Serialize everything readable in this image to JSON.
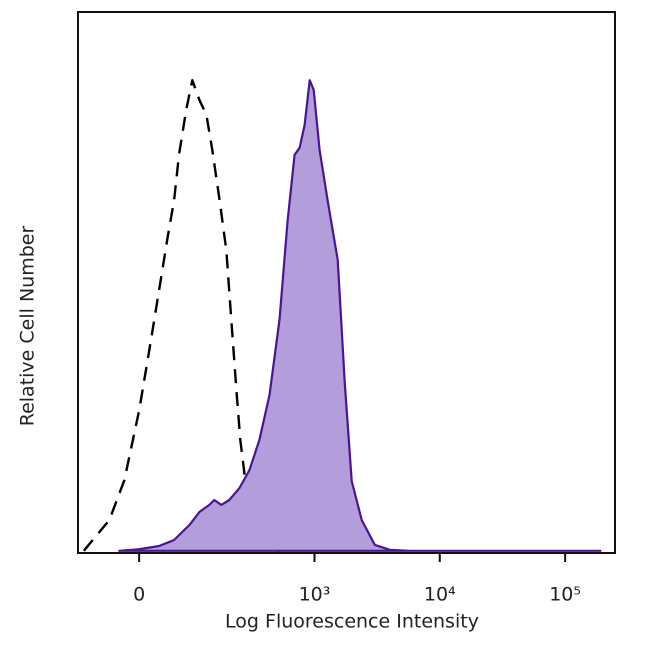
{
  "chart_data": {
    "type": "histogram-overlay",
    "xlabel": "Log Fluorescence Intensity",
    "ylabel": "Relative Cell Number",
    "xscale": "biexponential",
    "xlim": [
      -110,
      250000
    ],
    "xticks": [
      0,
      {
        "value": 1000,
        "label": "10³"
      },
      {
        "value": 10000,
        "label": "10⁴"
      },
      {
        "value": 100000,
        "label": "10⁵"
      }
    ],
    "ylim": [
      0,
      100
    ],
    "series": [
      {
        "color": "#000000",
        "dashed": true,
        "filled": false,
        "x": [
          -96,
          -46,
          -22,
          0,
          15,
          30,
          43,
          55,
          64,
          78,
          91,
          108,
          126,
          143,
          166,
          190,
          210,
          232,
          250,
          282,
          328,
          395,
          524
        ],
        "values": [
          0.4,
          6.1,
          13.5,
          26.4,
          37.5,
          48.6,
          57.9,
          65.2,
          73.6,
          81.9,
          87.4,
          83.7,
          81,
          74.5,
          65.2,
          56,
          43.1,
          30.1,
          20.9,
          11.6,
          4.3,
          0.9,
          0.4
        ]
      },
      {
        "color": "#4a1590",
        "fill": "#b39ddb",
        "dashed": false,
        "filled": true,
        "x": [
          -30,
          0,
          30,
          55,
          85,
          108,
          134,
          149,
          172,
          202,
          246,
          298,
          360,
          435,
          524,
          610,
          693,
          760,
          834,
          915,
          985,
          1099,
          1274,
          1532,
          1744,
          1984,
          2384,
          3032,
          4000,
          5776,
          191200
        ],
        "values": [
          0.4,
          0.7,
          1.3,
          2.4,
          5.2,
          7.6,
          8.9,
          9.8,
          8.9,
          9.8,
          12,
          15.3,
          20.9,
          29.2,
          43.1,
          61.6,
          73.6,
          74.9,
          79.1,
          87.4,
          85.6,
          74.5,
          65.2,
          54.2,
          31.6,
          13.3,
          6.1,
          1.5,
          0.6,
          0.4,
          0.4
        ]
      }
    ]
  }
}
